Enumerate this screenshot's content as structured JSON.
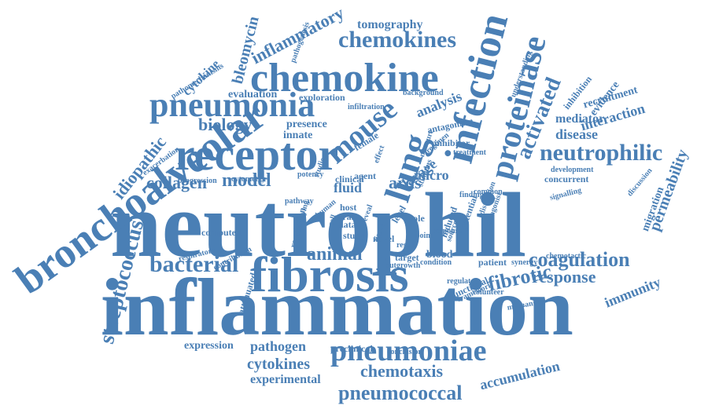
{
  "colors": {
    "word": "#4a7fb5",
    "background": "#ffffff"
  },
  "words": [
    {
      "text": "neutrophil"
    },
    {
      "text": "inflammation"
    },
    {
      "text": "fibrosis"
    },
    {
      "text": "receptor"
    },
    {
      "text": "bronchoalveolar"
    },
    {
      "text": "pneumonia"
    },
    {
      "text": "chemokine"
    },
    {
      "text": "infection"
    },
    {
      "text": "lung"
    },
    {
      "text": "proteinase"
    },
    {
      "text": "mouse"
    },
    {
      "text": "pneumoniae"
    },
    {
      "text": "streptococcus"
    },
    {
      "text": "neutrophilic"
    },
    {
      "text": "chemokines"
    },
    {
      "text": "coagulation"
    },
    {
      "text": "bacterial"
    },
    {
      "text": "activated"
    },
    {
      "text": "fibrotic"
    },
    {
      "text": "pneumococcal"
    },
    {
      "text": "collagen"
    },
    {
      "text": "model"
    },
    {
      "text": "ards"
    },
    {
      "text": "biology"
    },
    {
      "text": "inflammatory"
    },
    {
      "text": "idiopathic"
    },
    {
      "text": "animal"
    },
    {
      "text": "response"
    },
    {
      "text": "permeability"
    },
    {
      "text": "chemotaxis"
    },
    {
      "text": "cytokines"
    },
    {
      "text": "pathogen"
    },
    {
      "text": "accumulation"
    },
    {
      "text": "mediator"
    },
    {
      "text": "interaction"
    },
    {
      "text": "disease"
    },
    {
      "text": "analysis"
    },
    {
      "text": "bleomycin"
    },
    {
      "text": "tomography"
    },
    {
      "text": "immunity"
    },
    {
      "text": "experimental"
    },
    {
      "text": "expression"
    },
    {
      "text": "migration"
    },
    {
      "text": "fluid"
    },
    {
      "text": "evaluation"
    },
    {
      "text": "presence"
    },
    {
      "text": "innate"
    },
    {
      "text": "cytokine"
    },
    {
      "text": "evidence"
    },
    {
      "text": "recruitment"
    },
    {
      "text": "inhibition"
    },
    {
      "text": "lavage"
    },
    {
      "text": "micro"
    },
    {
      "text": "blood"
    },
    {
      "text": "preclinical"
    },
    {
      "text": "antagonism"
    },
    {
      "text": "inhibitor"
    },
    {
      "text": "patient"
    },
    {
      "text": "concurrent"
    },
    {
      "text": "exploration"
    },
    {
      "text": "female"
    },
    {
      "text": "host"
    },
    {
      "text": "viral"
    },
    {
      "text": "novel"
    },
    {
      "text": "computed"
    },
    {
      "text": "regulation"
    },
    {
      "text": "attenuated"
    },
    {
      "text": "contribution"
    },
    {
      "text": "respiratory"
    },
    {
      "text": "pathomechanisms"
    },
    {
      "text": "pathogenesis"
    },
    {
      "text": "background"
    },
    {
      "text": "infiltration"
    },
    {
      "text": "understanding"
    },
    {
      "text": "development"
    },
    {
      "text": "signalling"
    },
    {
      "text": "chemotactic"
    },
    {
      "text": "synergy"
    },
    {
      "text": "functional"
    },
    {
      "text": "regulate"
    },
    {
      "text": "volunteer"
    },
    {
      "text": "framework"
    },
    {
      "text": "mechanism"
    },
    {
      "text": "conclusion"
    },
    {
      "text": "role"
    },
    {
      "text": "level"
    },
    {
      "text": "data"
    },
    {
      "text": "study"
    },
    {
      "text": "target"
    },
    {
      "text": "potential"
    },
    {
      "text": "induced"
    },
    {
      "text": "agent"
    },
    {
      "text": "clinical"
    },
    {
      "text": "outgrowth"
    },
    {
      "text": "condition"
    },
    {
      "text": "progression"
    },
    {
      "text": "exacerbation"
    },
    {
      "text": "cytometry"
    },
    {
      "text": "pathway"
    },
    {
      "text": "underlying"
    },
    {
      "text": "measure"
    },
    {
      "text": "treatment"
    },
    {
      "text": "common"
    },
    {
      "text": "finding"
    },
    {
      "text": "stimulus"
    },
    {
      "text": "effect"
    },
    {
      "text": "antagonist"
    },
    {
      "text": "discussion"
    },
    {
      "text": "disruption"
    },
    {
      "text": "regimen"
    },
    {
      "text": "potency"
    },
    {
      "text": "studies"
    },
    {
      "text": "human"
    },
    {
      "text": "result"
    },
    {
      "text": "tissue"
    },
    {
      "text": "point"
    },
    {
      "text": "source"
    },
    {
      "text": "response"
    },
    {
      "text": "reveal"
    },
    {
      "text": "cell"
    }
  ]
}
